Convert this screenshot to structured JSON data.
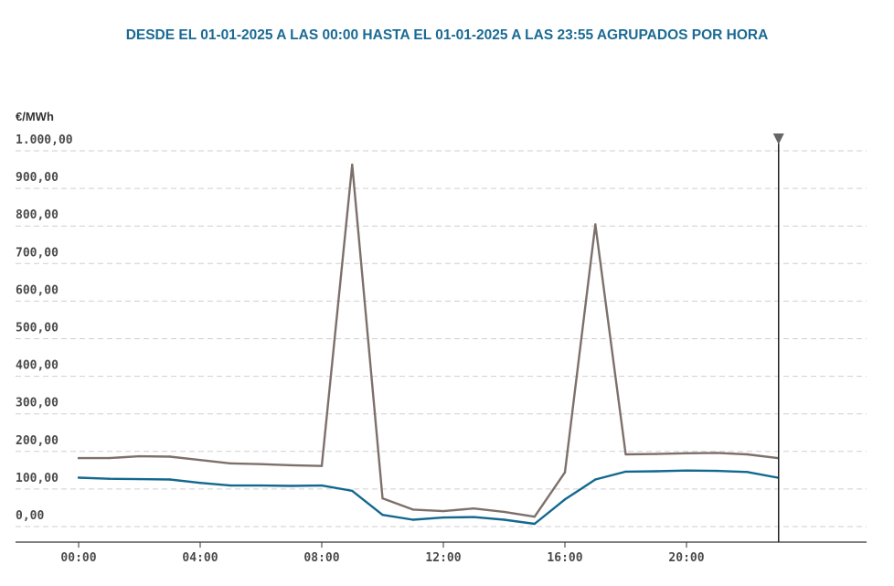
{
  "title": "DESDE EL 01-01-2025 A LAS 00:00 HASTA EL 01-01-2025 A LAS 23:55 AGRUPADOS POR HORA",
  "chart_data": {
    "type": "line",
    "title": "DESDE EL 01-01-2025 A LAS 00:00 HASTA EL 01-01-2025 A LAS 23:55 AGRUPADOS POR HORA",
    "ylabel": "€/MWh",
    "xlabel": "",
    "ylim": [
      0,
      1000
    ],
    "y_ticks": [
      "0,00",
      "100,00",
      "200,00",
      "300,00",
      "400,00",
      "500,00",
      "600,00",
      "700,00",
      "800,00",
      "900,00",
      "1.000,00"
    ],
    "x_ticks": [
      "00:00",
      "04:00",
      "08:00",
      "12:00",
      "16:00",
      "20:00"
    ],
    "x_tick_hours": [
      0,
      4,
      8,
      12,
      16,
      20
    ],
    "grid": true,
    "cursor_hour": 23,
    "x": [
      0,
      1,
      2,
      3,
      4,
      5,
      6,
      7,
      8,
      9,
      10,
      11,
      12,
      13,
      14,
      15,
      16,
      17,
      18,
      19,
      20,
      21,
      22,
      23
    ],
    "series": [
      {
        "color": "#7d706b",
        "values": [
          153,
          153,
          158,
          157,
          148,
          139,
          137,
          134,
          132,
          934,
          46,
          16,
          12,
          19,
          10,
          -3,
          115,
          775,
          163,
          164,
          166,
          167,
          163,
          153
        ]
      },
      {
        "color": "#13688f",
        "values": [
          101,
          98,
          97,
          96,
          87,
          80,
          80,
          79,
          80,
          66,
          2,
          -11,
          -5,
          -4,
          -11,
          -22,
          43,
          96,
          117,
          118,
          120,
          119,
          116,
          101
        ]
      }
    ]
  }
}
